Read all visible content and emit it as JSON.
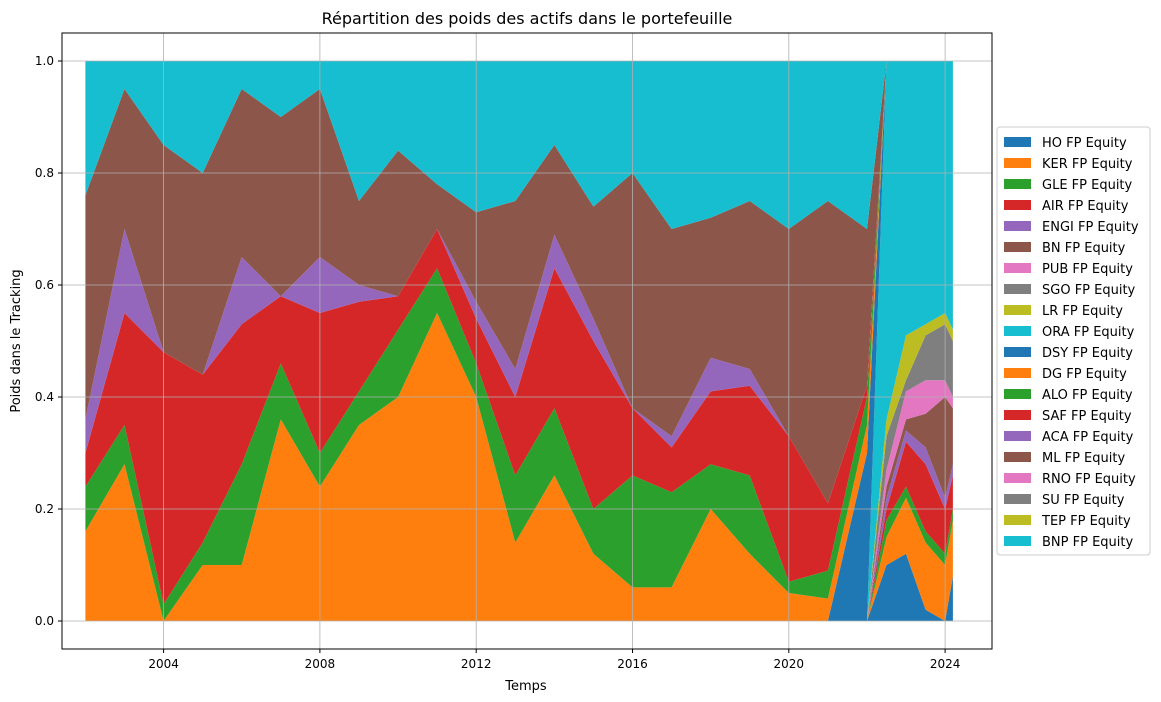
{
  "chart_data": {
    "type": "area",
    "stacked": true,
    "title": "Répartition des poids des actifs dans le portefeuille",
    "xlabel": "Temps",
    "ylabel": "Poids dans le Tracking",
    "xlim": [
      2001.4,
      2025.2
    ],
    "ylim": [
      -0.05,
      1.05
    ],
    "x_ticks": [
      2004,
      2008,
      2012,
      2016,
      2020,
      2024
    ],
    "x_tick_labels": [
      "2004",
      "2008",
      "2012",
      "2016",
      "2020",
      "2024"
    ],
    "y_ticks": [
      0.0,
      0.2,
      0.4,
      0.6,
      0.8,
      1.0
    ],
    "y_tick_labels": [
      "0.0",
      "0.2",
      "0.4",
      "0.6",
      "0.8",
      "1.0"
    ],
    "grid": true,
    "legend_position": "right",
    "x": [
      2002.0,
      2003.0,
      2004.0,
      2005.0,
      2006.0,
      2007.0,
      2008.0,
      2009.0,
      2010.0,
      2011.0,
      2012.0,
      2013.0,
      2014.0,
      2015.0,
      2016.0,
      2017.0,
      2018.0,
      2019.0,
      2020.0,
      2021.0,
      2022.0,
      2022.5,
      2023.0,
      2023.5,
      2024.0,
      2024.2
    ],
    "series": [
      {
        "name": "HO FP Equity",
        "color": "#1f77b4",
        "values": [
          0,
          0,
          0,
          0,
          0,
          0,
          0,
          0,
          0,
          0,
          0,
          0,
          0,
          0,
          0,
          0,
          0,
          0,
          0,
          0,
          0,
          0.1,
          0.12,
          0.02,
          0,
          0.08
        ]
      },
      {
        "name": "KER FP Equity",
        "color": "#ff7f0e",
        "values": [
          0,
          0,
          0,
          0,
          0,
          0,
          0,
          0,
          0,
          0,
          0,
          0,
          0,
          0,
          0,
          0,
          0,
          0,
          0,
          0,
          0,
          0.05,
          0.1,
          0.12,
          0.1,
          0.1
        ]
      },
      {
        "name": "GLE FP Equity",
        "color": "#2ca02c",
        "values": [
          0,
          0,
          0,
          0,
          0,
          0,
          0,
          0,
          0,
          0,
          0,
          0,
          0,
          0,
          0,
          0,
          0,
          0,
          0,
          0,
          0,
          0.03,
          0.02,
          0.02,
          0.02,
          0.02
        ]
      },
      {
        "name": "AIR FP Equity",
        "color": "#d62728",
        "values": [
          0,
          0,
          0,
          0,
          0,
          0,
          0,
          0,
          0,
          0,
          0,
          0,
          0,
          0,
          0,
          0,
          0,
          0,
          0,
          0,
          0,
          0.02,
          0.08,
          0.12,
          0.08,
          0.06
        ]
      },
      {
        "name": "ENGI FP Equity",
        "color": "#9467bd",
        "values": [
          0,
          0,
          0,
          0,
          0,
          0,
          0,
          0,
          0,
          0,
          0,
          0,
          0,
          0,
          0,
          0,
          0,
          0,
          0,
          0,
          0,
          0.02,
          0.02,
          0.03,
          0.02,
          0.02
        ]
      },
      {
        "name": "BN FP Equity",
        "color": "#8c564b",
        "values": [
          0,
          0,
          0,
          0,
          0,
          0,
          0,
          0,
          0,
          0,
          0,
          0,
          0,
          0,
          0,
          0,
          0,
          0,
          0,
          0,
          0,
          0.02,
          0.02,
          0.06,
          0.18,
          0.1
        ]
      },
      {
        "name": "PUB FP Equity",
        "color": "#e377c2",
        "values": [
          0,
          0,
          0,
          0,
          0,
          0,
          0,
          0,
          0,
          0,
          0,
          0,
          0,
          0,
          0,
          0,
          0,
          0,
          0,
          0,
          0,
          0.03,
          0.05,
          0.06,
          0.03,
          0.02
        ]
      },
      {
        "name": "SGO FP Equity",
        "color": "#7f7f7f",
        "values": [
          0,
          0,
          0,
          0,
          0,
          0,
          0,
          0,
          0,
          0,
          0,
          0,
          0,
          0,
          0,
          0,
          0,
          0,
          0,
          0,
          0,
          0.06,
          0.02,
          0.08,
          0.1,
          0.1
        ]
      },
      {
        "name": "LR FP Equity",
        "color": "#bcbd22",
        "values": [
          0,
          0,
          0,
          0,
          0,
          0,
          0,
          0,
          0,
          0,
          0,
          0,
          0,
          0,
          0,
          0,
          0,
          0,
          0,
          0,
          0,
          0.03,
          0.08,
          0.02,
          0.02,
          0.02
        ]
      },
      {
        "name": "ORA FP Equity",
        "color": "#17becf",
        "values": [
          0,
          0,
          0,
          0,
          0,
          0,
          0,
          0,
          0,
          0,
          0,
          0,
          0,
          0,
          0,
          0,
          0,
          0,
          0,
          0,
          0,
          0.64,
          0.49,
          0.47,
          0.45,
          0.48
        ]
      },
      {
        "name": "DSY FP Equity",
        "color": "#1f77b4",
        "values": [
          0,
          0,
          0,
          0,
          0,
          0,
          0,
          0,
          0,
          0,
          0,
          0,
          0,
          0,
          0,
          0,
          0,
          0,
          0,
          0,
          0.3,
          0,
          0,
          0,
          0,
          0
        ]
      },
      {
        "name": "DG FP Equity",
        "color": "#ff7f0e",
        "values": [
          0.16,
          0.28,
          0,
          0.1,
          0.1,
          0.36,
          0.24,
          0.35,
          0.4,
          0.55,
          0.4,
          0.14,
          0.26,
          0.12,
          0.06,
          0.06,
          0.2,
          0.12,
          0.05,
          0.04,
          0.05,
          0,
          0,
          0,
          0,
          0
        ]
      },
      {
        "name": "ALO FP Equity",
        "color": "#2ca02c",
        "values": [
          0.08,
          0.07,
          0.03,
          0.04,
          0.18,
          0.1,
          0.06,
          0.06,
          0.12,
          0.08,
          0.06,
          0.12,
          0.12,
          0.08,
          0.2,
          0.17,
          0.08,
          0.14,
          0.02,
          0.05,
          0.05,
          0,
          0,
          0,
          0,
          0
        ]
      },
      {
        "name": "SAF FP Equity",
        "color": "#d62728",
        "values": [
          0.06,
          0.2,
          0.45,
          0.3,
          0.25,
          0.12,
          0.25,
          0.16,
          0.06,
          0.07,
          0.08,
          0.14,
          0.25,
          0.3,
          0.12,
          0.08,
          0.13,
          0.16,
          0.26,
          0.12,
          0.02,
          0,
          0,
          0,
          0,
          0
        ]
      },
      {
        "name": "ACA FP Equity",
        "color": "#9467bd",
        "values": [
          0.06,
          0.15,
          0,
          0,
          0.12,
          0,
          0.1,
          0.03,
          0,
          0,
          0.03,
          0.05,
          0.06,
          0.04,
          0,
          0.02,
          0.06,
          0.03,
          0,
          0,
          0,
          0,
          0,
          0,
          0,
          0
        ]
      },
      {
        "name": "ML FP Equity",
        "color": "#8c564b",
        "values": [
          0.4,
          0.25,
          0.37,
          0.36,
          0.3,
          0.32,
          0.3,
          0.15,
          0.26,
          0.08,
          0.16,
          0.3,
          0.16,
          0.2,
          0.42,
          0.37,
          0.25,
          0.3,
          0.37,
          0.54,
          0.28,
          0,
          0,
          0,
          0,
          0
        ]
      },
      {
        "name": "RNO FP Equity",
        "color": "#e377c2",
        "values": [
          0,
          0,
          0,
          0,
          0,
          0,
          0,
          0,
          0,
          0,
          0,
          0,
          0,
          0,
          0,
          0,
          0,
          0,
          0,
          0,
          0,
          0,
          0,
          0,
          0,
          0
        ]
      },
      {
        "name": "SU FP Equity",
        "color": "#7f7f7f",
        "values": [
          0,
          0,
          0,
          0,
          0,
          0,
          0,
          0,
          0,
          0,
          0,
          0,
          0,
          0,
          0,
          0,
          0,
          0,
          0,
          0,
          0,
          0,
          0,
          0,
          0,
          0
        ]
      },
      {
        "name": "TEP FP Equity",
        "color": "#bcbd22",
        "values": [
          0,
          0,
          0,
          0,
          0,
          0,
          0,
          0,
          0,
          0,
          0,
          0,
          0,
          0,
          0,
          0,
          0,
          0,
          0,
          0,
          0,
          0,
          0,
          0,
          0,
          0
        ]
      },
      {
        "name": "BNP FP Equity",
        "color": "#17becf",
        "values": [
          0.24,
          0.05,
          0.15,
          0.2,
          0.05,
          0.1,
          0.05,
          0.25,
          0.16,
          0.22,
          0.27,
          0.25,
          0.15,
          0.26,
          0.2,
          0.3,
          0.28,
          0.25,
          0.3,
          0.25,
          0.3,
          0,
          0,
          0,
          0,
          0
        ]
      }
    ]
  }
}
